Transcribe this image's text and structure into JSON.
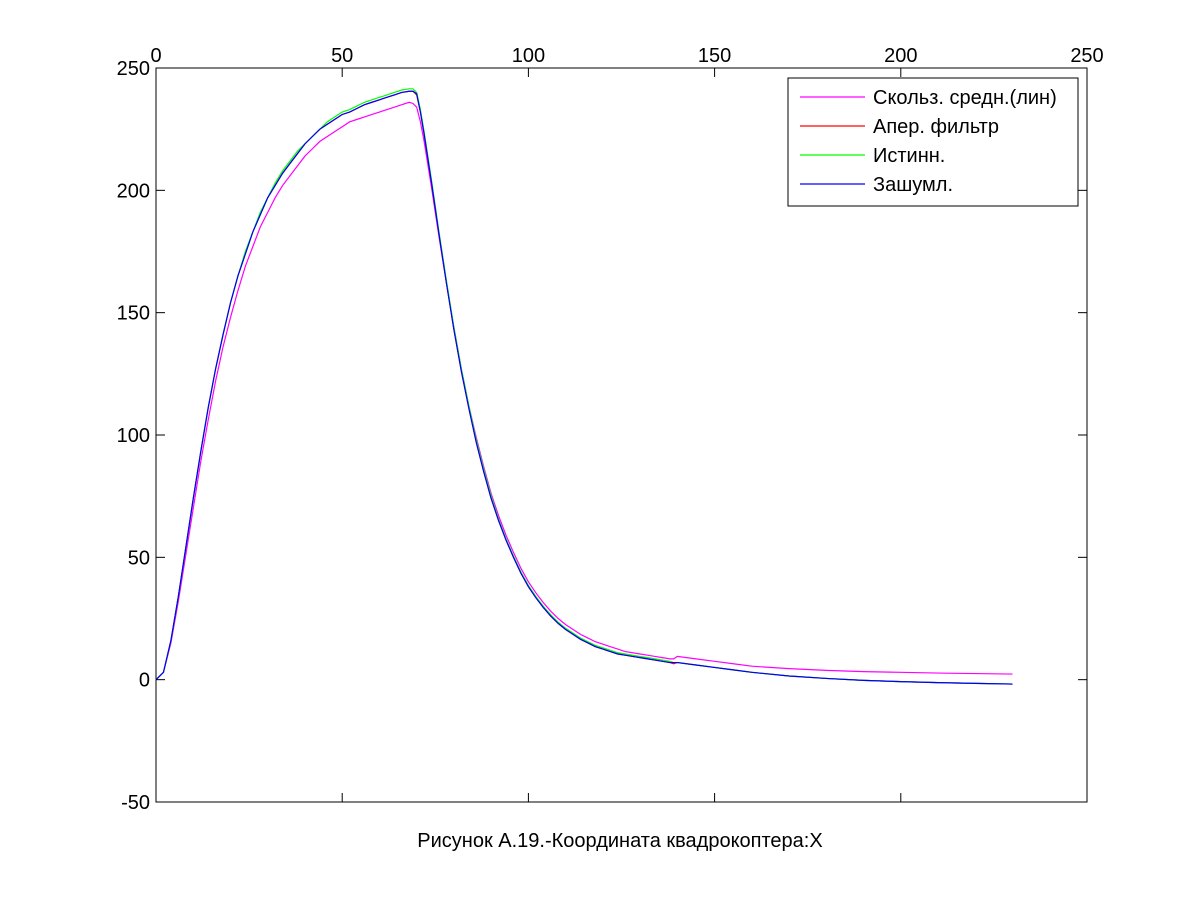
{
  "chart_data": {
    "type": "line",
    "title": "",
    "caption": "Рисунок А.19.-Координата квадрокоптера:X",
    "xlabel": "",
    "ylabel": "",
    "xlim": [
      0,
      250
    ],
    "ylim": [
      -50,
      250
    ],
    "x_ticks": [
      0,
      50,
      100,
      150,
      200,
      250
    ],
    "x_tick_labels": [
      "0",
      "50",
      "100",
      "150",
      "200",
      "250"
    ],
    "y_ticks": [
      -50,
      0,
      50,
      100,
      150,
      200,
      250
    ],
    "y_tick_labels": [
      "-50",
      "0",
      "50",
      "100",
      "150",
      "200",
      "250"
    ],
    "x_axis_location": "top",
    "grid": false,
    "legend_position": "top-right",
    "x": [
      0,
      2,
      4,
      6,
      8,
      10,
      12,
      14,
      16,
      18,
      20,
      22,
      24,
      26,
      28,
      30,
      32,
      34,
      36,
      38,
      40,
      42,
      44,
      46,
      48,
      50,
      52,
      54,
      56,
      58,
      60,
      62,
      64,
      66,
      68,
      69,
      70,
      71,
      72,
      74,
      76,
      78,
      80,
      82,
      84,
      86,
      88,
      90,
      92,
      94,
      96,
      98,
      100,
      102,
      104,
      106,
      108,
      110,
      112,
      114,
      116,
      118,
      120,
      122,
      124,
      126,
      128,
      130,
      132,
      134,
      136,
      138,
      139,
      140,
      145,
      150,
      155,
      160,
      170,
      180,
      190,
      200,
      210,
      220,
      230
    ],
    "series": [
      {
        "name": "Скольз. средн.(лин)",
        "color": "#ff00ff",
        "values": [
          0,
          3,
          15,
          32,
          51,
          70,
          89,
          106,
          122,
          136,
          148,
          159,
          169,
          177,
          185,
          191,
          197,
          202,
          206,
          210,
          214,
          217,
          220,
          222,
          224,
          226,
          228,
          229,
          230,
          231,
          232,
          233,
          234,
          235,
          236,
          235.5,
          234,
          228,
          220,
          201,
          181,
          162,
          144,
          127,
          112,
          99,
          87,
          76,
          67,
          59,
          52,
          45.5,
          40,
          35.5,
          31.5,
          28,
          25,
          22.5,
          20.5,
          18.5,
          17,
          15.5,
          14.5,
          13.5,
          12.5,
          11.5,
          11,
          10.5,
          10,
          9.5,
          9,
          8.5,
          8.5,
          9.5,
          8.5,
          7.5,
          6.5,
          5.5,
          4.5,
          3.8,
          3.3,
          3.0,
          2.7,
          2.5,
          2.3
        ]
      },
      {
        "name": "Апер. фильтр",
        "color": "#ff0000",
        "values": [
          0,
          3,
          16,
          34,
          54,
          74,
          93,
          111,
          127,
          141,
          154,
          165,
          174,
          183,
          190,
          197,
          202,
          207,
          211,
          215,
          219,
          222,
          225,
          227,
          229,
          231,
          232,
          233.5,
          235,
          236,
          237,
          238,
          239,
          240,
          240.5,
          240.5,
          239,
          232,
          223,
          203,
          182,
          162,
          143,
          126,
          111,
          97,
          85,
          74,
          65,
          57,
          50,
          43.5,
          38,
          33.5,
          29.5,
          26,
          23,
          20.5,
          18.5,
          16.5,
          15,
          13.5,
          12.5,
          11.5,
          10.5,
          10,
          9.5,
          9,
          8.5,
          8,
          7.5,
          7,
          6.5,
          7,
          6,
          5,
          4,
          3,
          1.5,
          0.5,
          -0.3,
          -0.8,
          -1.2,
          -1.5,
          -1.8
        ]
      },
      {
        "name": "Истинн.",
        "color": "#00ff00",
        "values": [
          0,
          3,
          16,
          34,
          54,
          74,
          93,
          111,
          127,
          141,
          154,
          165,
          175,
          183,
          191,
          197,
          203,
          208,
          212,
          216,
          219,
          222,
          225,
          228,
          230,
          232,
          233,
          234.5,
          236,
          237,
          238,
          239,
          240,
          241,
          241.5,
          241.5,
          240,
          233,
          224,
          204,
          183,
          163,
          144,
          127,
          112,
          98,
          86,
          75,
          65.5,
          57.5,
          50.5,
          44,
          38.5,
          34,
          30,
          26.5,
          23.5,
          21,
          19,
          17,
          15.5,
          14,
          13,
          12,
          11,
          10.5,
          10,
          9.5,
          9,
          8.5,
          8,
          7.5,
          7,
          7,
          6,
          5,
          4,
          3,
          1.5,
          0.5,
          -0.3,
          -0.8,
          -1.2,
          -1.5,
          -1.8
        ]
      },
      {
        "name": "Зашумл.",
        "color": "#0000ff",
        "values": [
          0,
          3,
          16,
          34,
          54,
          74,
          93,
          111,
          127,
          141,
          154,
          165,
          174,
          183,
          190,
          197,
          202,
          207,
          211,
          215,
          219,
          222,
          225,
          227,
          229,
          231,
          232,
          233.5,
          235,
          236,
          237,
          238,
          239,
          240,
          240.5,
          240.5,
          239.5,
          232,
          223,
          203,
          182,
          162,
          143,
          126,
          111,
          97,
          85,
          74,
          65,
          57,
          50,
          43.5,
          38,
          33.5,
          29.5,
          26,
          23,
          20.5,
          18.5,
          16.5,
          15,
          13.5,
          12.5,
          11.5,
          10.5,
          10,
          9.5,
          9,
          8.5,
          8,
          7.5,
          7,
          7,
          7,
          6,
          5,
          4,
          3,
          1.5,
          0.5,
          -0.3,
          -0.8,
          -1.2,
          -1.5,
          -1.8
        ]
      }
    ]
  }
}
